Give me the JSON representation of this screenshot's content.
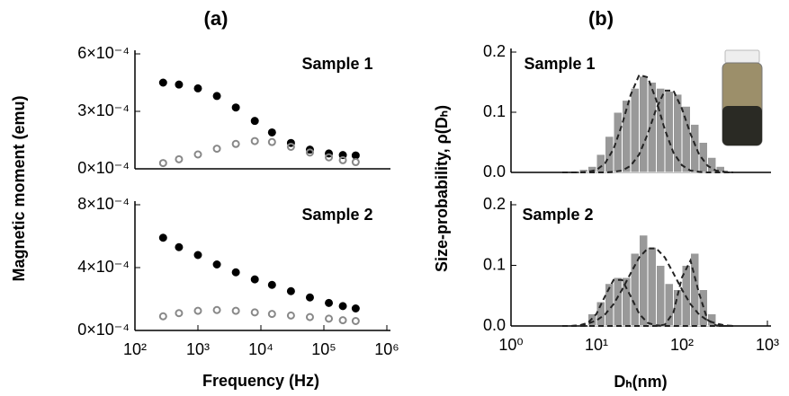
{
  "chart_data": [
    {
      "type": "scatter",
      "title": "(a)",
      "ylabel": "Magnetic moment (emu)",
      "annotation": "Sample 1",
      "xscale": "log",
      "x": [
        280,
        500,
        1000,
        2000,
        4000,
        8000,
        15000,
        30000,
        60000,
        120000,
        200000,
        320000
      ],
      "series": [
        {
          "color": "#000000",
          "values": [
            0.00045,
            0.00044,
            0.00042,
            0.00038,
            0.00032,
            0.00025,
            0.00019,
            0.000135,
            0.0001,
            8e-05,
            7.2e-05,
            7e-05
          ]
        },
        {
          "color": "#888888",
          "values": [
            3e-05,
            5e-05,
            7.5e-05,
            0.000105,
            0.00013,
            0.000145,
            0.00014,
            0.000115,
            8.5e-05,
            6e-05,
            4.5e-05,
            3.5e-05
          ]
        }
      ],
      "xlim": [
        100,
        1000000
      ],
      "ylim": [
        0,
        0.0006
      ],
      "yticks": [
        {
          "value": 0,
          "label": "0×10⁻⁴"
        },
        {
          "value": 0.0003,
          "label": "3×10⁻⁴"
        },
        {
          "value": 0.0006,
          "label": "6×10⁻⁴"
        }
      ]
    },
    {
      "type": "scatter",
      "xlabel": "Frequency (Hz)",
      "annotation": "Sample 2",
      "xscale": "log",
      "x": [
        280,
        500,
        1000,
        2000,
        4000,
        8000,
        15000,
        30000,
        60000,
        120000,
        200000,
        320000
      ],
      "series": [
        {
          "color": "#000000",
          "values": [
            0.00059,
            0.00053,
            0.00048,
            0.00042,
            0.00037,
            0.000325,
            0.00029,
            0.00025,
            0.00021,
            0.000175,
            0.000155,
            0.00014
          ]
        },
        {
          "color": "#888888",
          "values": [
            9e-05,
            0.00011,
            0.000125,
            0.00013,
            0.000125,
            0.000115,
            0.000105,
            9.5e-05,
            8.5e-05,
            7.5e-05,
            6.5e-05,
            6e-05
          ]
        }
      ],
      "xlim": [
        100,
        1000000
      ],
      "ylim": [
        0,
        0.0008
      ],
      "xticks": [
        {
          "value": 100,
          "label": "10²"
        },
        {
          "value": 1000,
          "label": "10³"
        },
        {
          "value": 10000,
          "label": "10⁴"
        },
        {
          "value": 100000,
          "label": "10⁵"
        },
        {
          "value": 1000000,
          "label": "10⁶"
        }
      ],
      "yticks": [
        {
          "value": 0,
          "label": "0×10⁻⁴"
        },
        {
          "value": 0.0004,
          "label": "4×10⁻⁴"
        },
        {
          "value": 0.0008,
          "label": "8×10⁻⁴"
        }
      ]
    },
    {
      "type": "histogram",
      "title": "(b)",
      "ylabel": "Size-probability, ρ(Dₕ)",
      "annotation": "Sample 1",
      "xscale": "log",
      "color": "#999999",
      "bins": [
        6.31,
        7.94,
        10,
        12.59,
        15.85,
        19.95,
        25.12,
        31.62,
        39.81,
        50.12,
        63.1,
        79.43,
        100,
        125.9,
        158.5,
        199.5,
        251.2,
        316.2
      ],
      "values": [
        0.005,
        0.01,
        0.03,
        0.06,
        0.1,
        0.12,
        0.14,
        0.16,
        0.15,
        0.14,
        0.135,
        0.13,
        0.11,
        0.08,
        0.05,
        0.025,
        0.01
      ],
      "fit_x": [
        3.98,
        5.01,
        6.31,
        7.94,
        10,
        12.59,
        15.85,
        19.95,
        25.12,
        31.62,
        39.81,
        50.12,
        63.1,
        79.43,
        100,
        125.9,
        158.5,
        199.5,
        251.2,
        316.2,
        398.1
      ],
      "fits": [
        {
          "values": [
            0,
            0,
            0,
            0.001,
            0.004,
            0.015,
            0.039,
            0.08,
            0.129,
            0.162,
            0.158,
            0.12,
            0.071,
            0.033,
            0.012,
            0.003,
            0.001,
            0,
            0,
            0,
            0
          ]
        },
        {
          "values": [
            0,
            0,
            0,
            0,
            0,
            0,
            0.001,
            0.003,
            0.011,
            0.03,
            0.064,
            0.106,
            0.136,
            0.136,
            0.106,
            0.064,
            0.03,
            0.011,
            0.003,
            0.001,
            0
          ]
        }
      ],
      "xlim": [
        1,
        1000
      ],
      "ylim": [
        0,
        0.2
      ],
      "yticks": [
        {
          "value": 0,
          "label": "0.0"
        },
        0.1,
        0.2
      ]
    },
    {
      "type": "histogram",
      "xlabel": "Dₕ(nm)",
      "annotation": "Sample 2",
      "xscale": "log",
      "color": "#999999",
      "bins": [
        7.94,
        10,
        12.59,
        15.85,
        19.95,
        25.12,
        31.62,
        39.81,
        50.12,
        63.1,
        79.43,
        100,
        125.9,
        158.5,
        199.5,
        251.2
      ],
      "values": [
        0.02,
        0.04,
        0.07,
        0.08,
        0.08,
        0.12,
        0.15,
        0.13,
        0.1,
        0.07,
        0.06,
        0.1,
        0.12,
        0.06,
        0.02
      ],
      "fit_x": [
        3.98,
        5.01,
        6.31,
        7.94,
        10,
        12.59,
        15.85,
        19.95,
        25.12,
        31.62,
        39.81,
        50.12,
        63.1,
        79.43,
        100,
        125.9,
        158.5,
        199.5,
        251.2,
        316.2,
        398.1
      ],
      "fits": [
        {
          "values": [
            0,
            0,
            0.001,
            0.005,
            0.02,
            0.049,
            0.076,
            0.076,
            0.049,
            0.02,
            0.005,
            0.001,
            0,
            0,
            0,
            0,
            0,
            0,
            0,
            0,
            0
          ]
        },
        {
          "values": [
            0,
            0,
            0.001,
            0.004,
            0.009,
            0.019,
            0.036,
            0.06,
            0.087,
            0.113,
            0.128,
            0.128,
            0.113,
            0.087,
            0.06,
            0.036,
            0.019,
            0.009,
            0.004,
            0.001,
            0
          ]
        },
        {
          "values": [
            0,
            0,
            0,
            0,
            0,
            0,
            0,
            0,
            0,
            0,
            0,
            0,
            0.002,
            0.022,
            0.08,
            0.108,
            0.054,
            0.01,
            0.001,
            0,
            0
          ]
        }
      ],
      "xlim": [
        1,
        1000
      ],
      "ylim": [
        0,
        0.2
      ],
      "xticks": [
        {
          "value": 1,
          "label": "10⁰"
        },
        {
          "value": 10,
          "label": "10¹"
        },
        {
          "value": 100,
          "label": "10²"
        },
        {
          "value": 1000,
          "label": "10³"
        }
      ],
      "yticks": [
        {
          "value": 0,
          "label": "0.0"
        },
        0.1,
        0.2
      ]
    }
  ]
}
